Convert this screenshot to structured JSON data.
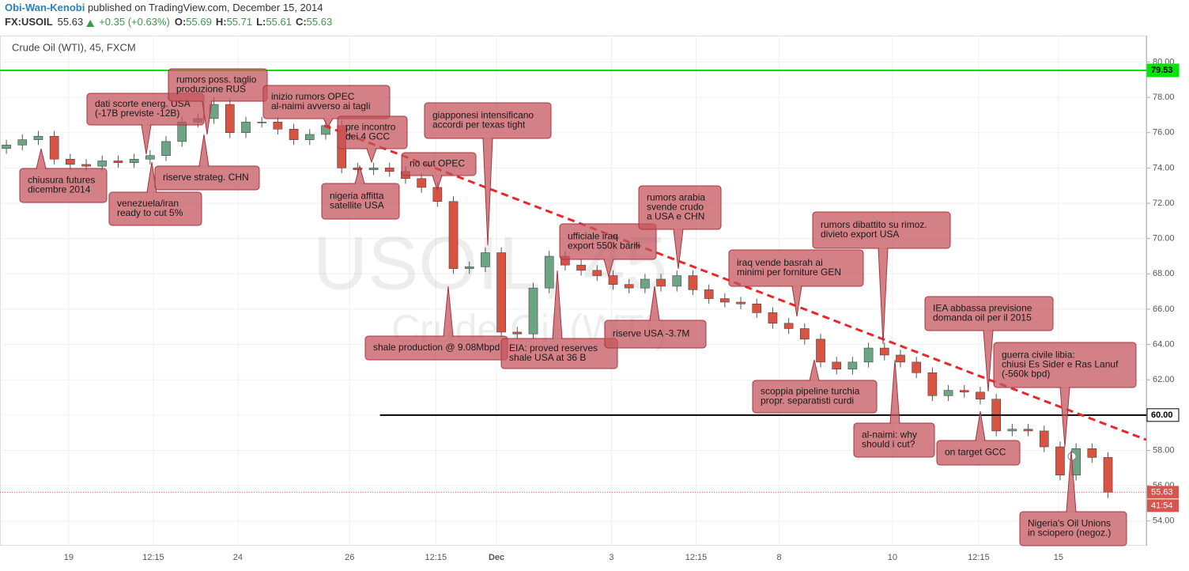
{
  "header": {
    "author": "Obi-Wan-Kenobi",
    "published": " published on TradingView.com, December 15, 2014",
    "symbol": "FX:USOIL",
    "last": "55.63",
    "change": "+0.35 (+0.63%)",
    "quote": [
      {
        "label": "O:",
        "value": "55.69"
      },
      {
        "label": "H:",
        "value": "55.71"
      },
      {
        "label": "L:",
        "value": "55.61"
      },
      {
        "label": "C:",
        "value": "55.63"
      }
    ]
  },
  "chart_data": {
    "type": "candlestick",
    "title": "Crude Oil (WTI), 45, FXCM",
    "watermark": "USOIL, 45",
    "watermark_sub": "Crude Oil (WTI)",
    "up_color": "#6ba583",
    "down_color": "#d75442",
    "wick_color": "#555555",
    "grid": true,
    "xlim": [
      -0.4,
      71.4
    ],
    "ylim": [
      52.6,
      81.5
    ],
    "xticks": [
      {
        "value": 3.9,
        "label": "19"
      },
      {
        "value": 9.2,
        "label": "12:15"
      },
      {
        "value": 14.5,
        "label": "24"
      },
      {
        "value": 21.5,
        "label": "26"
      },
      {
        "value": 26.9,
        "label": "12:15"
      },
      {
        "value": 30.7,
        "label": "Dec"
      },
      {
        "value": 37.9,
        "label": "3"
      },
      {
        "value": 43.2,
        "label": "12:15"
      },
      {
        "value": 48.4,
        "label": "8"
      },
      {
        "value": 55.5,
        "label": "10"
      },
      {
        "value": 60.9,
        "label": "12:15"
      },
      {
        "value": 65.9,
        "label": "15"
      }
    ],
    "yticks": [
      {
        "value": 54,
        "label": "54.00"
      },
      {
        "value": 56,
        "label": "56.00"
      },
      {
        "value": 58,
        "label": "58.00"
      },
      {
        "value": 60,
        "label": "60.00"
      },
      {
        "value": 62,
        "label": "62.00"
      },
      {
        "value": 64,
        "label": "64.00"
      },
      {
        "value": 66,
        "label": "66.00"
      },
      {
        "value": 68,
        "label": "68.00"
      },
      {
        "value": 70,
        "label": "70.00"
      },
      {
        "value": 72,
        "label": "72.00"
      },
      {
        "value": 74,
        "label": "74.00"
      },
      {
        "value": 76,
        "label": "76.00"
      },
      {
        "value": 78,
        "label": "78.00"
      },
      {
        "value": 80,
        "label": "80.00"
      }
    ],
    "open": [
      75.1,
      75.3,
      75.6,
      75.8,
      74.5,
      74.2,
      74.1,
      74.4,
      74.3,
      74.5,
      74.7,
      75.5,
      76.6,
      76.8,
      77.6,
      76.0,
      76.6,
      76.6,
      76.2,
      75.6,
      75.9,
      76.4,
      74.0,
      73.9,
      74.0,
      73.8,
      73.4,
      72.9,
      72.1,
      68.3,
      68.4,
      69.2,
      64.7,
      64.6,
      67.2,
      69.0,
      68.5,
      68.2,
      67.9,
      67.4,
      67.2,
      67.7,
      67.3,
      67.9,
      67.1,
      66.6,
      66.4,
      66.3,
      65.8,
      65.2,
      64.9,
      64.3,
      63.0,
      62.6,
      63.0,
      63.8,
      63.4,
      63.0,
      62.4,
      61.1,
      61.4,
      61.3,
      60.9,
      59.1,
      59.2,
      59.1,
      58.2,
      56.6,
      58.1,
      57.6
    ],
    "high": [
      75.6,
      75.9,
      76.1,
      76.1,
      74.8,
      74.5,
      74.7,
      74.7,
      74.8,
      75.0,
      75.8,
      76.9,
      77.1,
      78.0,
      77.9,
      76.9,
      76.9,
      76.9,
      76.5,
      76.2,
      76.7,
      76.7,
      74.3,
      74.3,
      74.3,
      74.1,
      73.7,
      73.2,
      72.4,
      68.7,
      69.5,
      69.5,
      65.0,
      67.5,
      69.3,
      69.3,
      68.8,
      68.5,
      68.2,
      67.7,
      68.0,
      68.0,
      68.2,
      68.2,
      67.4,
      66.9,
      66.7,
      66.6,
      66.1,
      65.5,
      65.2,
      64.6,
      63.3,
      63.3,
      64.1,
      64.1,
      63.7,
      63.3,
      62.7,
      61.7,
      61.7,
      61.6,
      61.2,
      59.5,
      59.5,
      59.4,
      58.5,
      58.4,
      58.4,
      57.9
    ],
    "low": [
      74.8,
      75.0,
      75.3,
      74.2,
      73.9,
      73.8,
      73.8,
      74.0,
      74.0,
      74.2,
      74.4,
      75.2,
      76.3,
      76.5,
      75.7,
      75.7,
      76.3,
      75.9,
      75.3,
      75.3,
      75.6,
      73.7,
      73.6,
      73.6,
      73.5,
      73.1,
      72.6,
      71.8,
      68.0,
      68.0,
      68.1,
      64.4,
      64.3,
      64.3,
      66.9,
      68.2,
      67.9,
      67.6,
      67.1,
      66.9,
      66.9,
      67.0,
      67.0,
      66.8,
      66.3,
      66.1,
      66.0,
      65.5,
      64.9,
      64.6,
      64.0,
      62.7,
      62.3,
      62.3,
      62.7,
      63.1,
      62.7,
      62.1,
      60.8,
      60.8,
      61.0,
      60.6,
      58.8,
      58.8,
      58.8,
      57.9,
      56.3,
      56.3,
      57.3,
      55.3
    ],
    "close": [
      75.3,
      75.6,
      75.8,
      74.5,
      74.2,
      74.1,
      74.4,
      74.3,
      74.5,
      74.7,
      75.5,
      76.6,
      76.8,
      77.6,
      76.0,
      76.6,
      76.6,
      76.2,
      75.6,
      75.9,
      76.4,
      74.0,
      73.9,
      74.0,
      73.8,
      73.4,
      72.9,
      72.1,
      68.3,
      68.4,
      69.2,
      64.7,
      64.6,
      67.2,
      69.0,
      68.5,
      68.2,
      67.9,
      67.4,
      67.2,
      67.7,
      67.3,
      67.9,
      67.1,
      66.6,
      66.4,
      66.3,
      65.8,
      65.2,
      64.9,
      64.3,
      63.0,
      62.6,
      63.0,
      63.8,
      63.4,
      63.0,
      62.4,
      61.1,
      61.4,
      61.3,
      60.9,
      59.1,
      59.2,
      59.1,
      58.2,
      56.6,
      58.1,
      57.6,
      55.63
    ],
    "hlines": [
      {
        "value": 79.53,
        "color": "#00e600",
        "start": -0.4
      },
      {
        "value": 60,
        "label": "60.00",
        "color": "#000000",
        "start": 23.4
      }
    ],
    "trendline": {
      "x": [
        19.9,
        71.4
      ],
      "y": [
        76.4,
        58.6
      ],
      "color": "#e8262b"
    },
    "last_price": {
      "value": 55.63,
      "countdown": "41:54",
      "color": "#d9534f"
    },
    "annotations": [
      {
        "lines": [
          "chiusura futures",
          "dicembre 2014"
        ]
      },
      {
        "lines": [
          "dati scorte energ. USA",
          "(-17B previste -12B)"
        ]
      },
      {
        "lines": [
          "venezuela/iran",
          "ready to cut 5%"
        ]
      },
      {
        "lines": [
          "rumors poss. taglio",
          "produzione RUS"
        ]
      },
      {
        "lines": [
          "riserve strateg. CHN"
        ]
      },
      {
        "lines": [
          "inizio rumors OPEC",
          "al-naimi avverso ai tagli"
        ]
      },
      {
        "lines": [
          "pre incontro",
          "dei 4 GCC"
        ]
      },
      {
        "lines": [
          "nigeria affitta",
          "satellite USA"
        ]
      },
      {
        "lines": [
          "no cut OPEC"
        ]
      },
      {
        "lines": [
          "giapponesi intensificano",
          "accordi per texas tight"
        ]
      },
      {
        "lines": [
          "shale production @ 9.08Mbpd"
        ]
      },
      {
        "lines": [
          "EIA: proved reserves",
          "shale USA at 36 B"
        ]
      },
      {
        "lines": [
          "ufficiale iraq",
          "export 550k barili"
        ]
      },
      {
        "lines": [
          "rumors arabia",
          "svende crudo",
          "a USA e CHN"
        ]
      },
      {
        "lines": [
          "riserve USA -3.7M"
        ]
      },
      {
        "lines": [
          "iraq vende basrah ai",
          "minimi per forniture GEN"
        ]
      },
      {
        "lines": [
          "rumors dibattito su rimoz.",
          "divieto export USA"
        ]
      },
      {
        "lines": [
          "scoppia pipeline turchia",
          "propr. separatisti curdi"
        ]
      },
      {
        "lines": [
          "al-naimi: why",
          "should i cut?"
        ]
      },
      {
        "lines": [
          "on target GCC"
        ]
      },
      {
        "lines": [
          "IEA abbassa previsione",
          "domanda oil per il 2015"
        ]
      },
      {
        "lines": [
          "guerra civile libia:",
          "chiusi Es Sider e Ras Lanuf",
          "(-560k bpd)"
        ]
      },
      {
        "lines": [
          "Nigeria's Oil Unions",
          "in sciopero (negoz.)"
        ]
      }
    ]
  }
}
